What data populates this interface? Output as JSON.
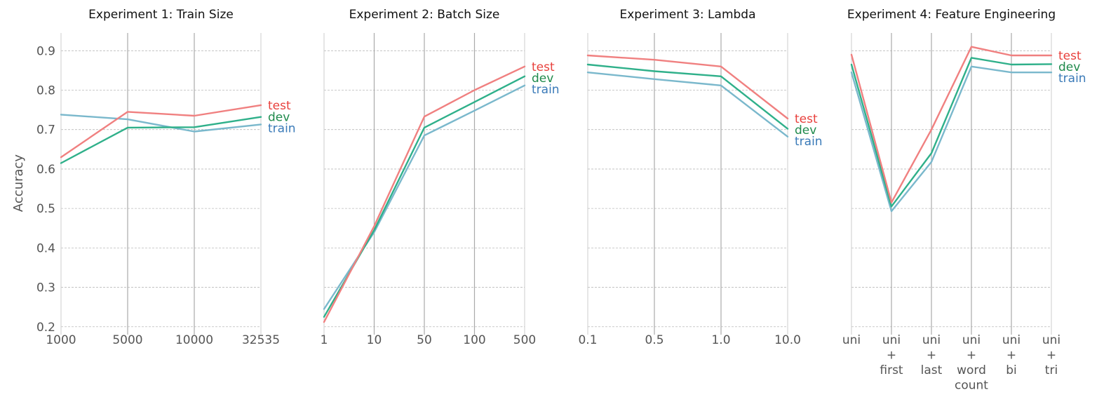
{
  "figure": {
    "ylabel": "Accuracy",
    "yticks": [
      "0.2",
      "0.3",
      "0.4",
      "0.5",
      "0.6",
      "0.7",
      "0.8",
      "0.9"
    ],
    "ylim": [
      0.18,
      0.945
    ],
    "grid": true
  },
  "colors": {
    "test": "#f08080",
    "dev": "#2fb08a",
    "train": "#7ab8cc"
  },
  "label_colors": {
    "test": "#e8403c",
    "dev": "#1f8a4c",
    "train": "#3a7ab8"
  },
  "chart_data": [
    {
      "type": "line",
      "title": "Experiment 1: Train Size",
      "categories": [
        "1000",
        "5000",
        "10000",
        "32535"
      ],
      "series": [
        {
          "name": "test",
          "values": [
            0.63,
            0.745,
            0.735,
            0.762
          ]
        },
        {
          "name": "dev",
          "values": [
            0.615,
            0.705,
            0.706,
            0.732
          ]
        },
        {
          "name": "train",
          "values": [
            0.738,
            0.726,
            0.695,
            0.713
          ]
        }
      ]
    },
    {
      "type": "line",
      "title": "Experiment 2: Batch Size",
      "categories": [
        "1",
        "10",
        "50",
        "100",
        "500"
      ],
      "series": [
        {
          "name": "test",
          "values": [
            0.212,
            0.455,
            0.733,
            0.8,
            0.86
          ]
        },
        {
          "name": "dev",
          "values": [
            0.225,
            0.445,
            0.705,
            0.77,
            0.835
          ]
        },
        {
          "name": "train",
          "values": [
            0.245,
            0.44,
            0.685,
            0.748,
            0.812
          ]
        }
      ]
    },
    {
      "type": "line",
      "title": "Experiment 3: Lambda",
      "categories": [
        "0.1",
        "0.5",
        "1.0",
        "10.0"
      ],
      "series": [
        {
          "name": "test",
          "values": [
            0.888,
            0.877,
            0.86,
            0.728
          ]
        },
        {
          "name": "dev",
          "values": [
            0.865,
            0.848,
            0.835,
            0.702
          ]
        },
        {
          "name": "train",
          "values": [
            0.845,
            0.828,
            0.812,
            0.682
          ]
        }
      ]
    },
    {
      "type": "line",
      "title": "Experiment 4: Feature Engineering",
      "categories": [
        "uni",
        "uni\n+\nfirst",
        "uni\n+\nlast",
        "uni\n+\nword\ncount",
        "uni\n+\nbi",
        "uni\n+\ntri"
      ],
      "series": [
        {
          "name": "test",
          "values": [
            0.89,
            0.515,
            0.7,
            0.91,
            0.888,
            0.888
          ]
        },
        {
          "name": "dev",
          "values": [
            0.865,
            0.505,
            0.64,
            0.882,
            0.865,
            0.866
          ]
        },
        {
          "name": "train",
          "values": [
            0.845,
            0.493,
            0.618,
            0.86,
            0.845,
            0.845
          ]
        }
      ]
    }
  ]
}
